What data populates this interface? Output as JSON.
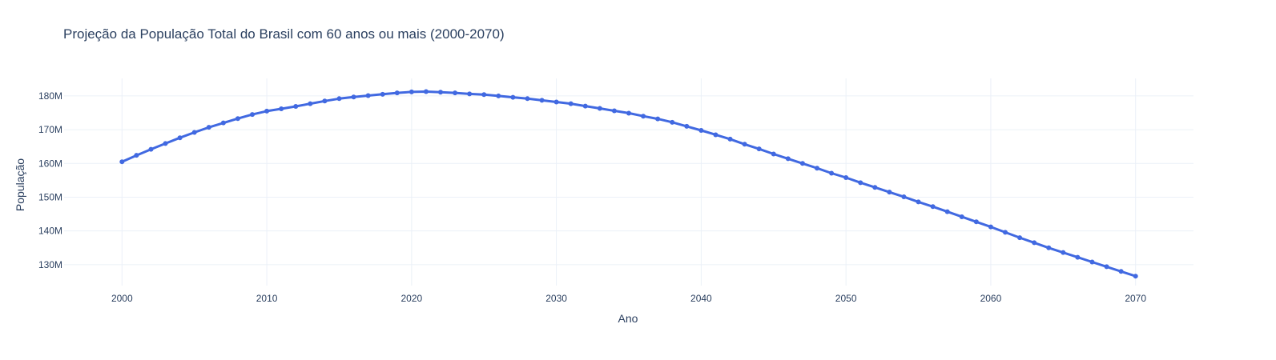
{
  "chart_data": {
    "type": "line",
    "title": "Projeção da População Total do Brasil com 60 anos ou mais (2000-2070)",
    "xlabel": "Ano",
    "ylabel": "População",
    "xlim": [
      1996,
      2074
    ],
    "ylim": [
      123800000,
      185200000
    ],
    "x_ticks": [
      2000,
      2010,
      2020,
      2030,
      2040,
      2050,
      2060,
      2070
    ],
    "y_ticks": [
      130000000,
      140000000,
      150000000,
      160000000,
      170000000,
      180000000
    ],
    "y_tick_labels": [
      "130M",
      "140M",
      "150M",
      "160M",
      "170M",
      "180M"
    ],
    "grid": true,
    "line_color": "#4169e1",
    "series": [
      {
        "x": [
          2000,
          2001,
          2002,
          2003,
          2004,
          2005,
          2006,
          2007,
          2008,
          2009,
          2010,
          2011,
          2012,
          2013,
          2014,
          2015,
          2016,
          2017,
          2018,
          2019,
          2020,
          2021,
          2022,
          2023,
          2024,
          2025,
          2026,
          2027,
          2028,
          2029,
          2030,
          2031,
          2032,
          2033,
          2034,
          2035,
          2036,
          2037,
          2038,
          2039,
          2040,
          2041,
          2042,
          2043,
          2044,
          2045,
          2046,
          2047,
          2048,
          2049,
          2050,
          2051,
          2052,
          2053,
          2054,
          2055,
          2056,
          2057,
          2058,
          2059,
          2060,
          2061,
          2062,
          2063,
          2064,
          2065,
          2066,
          2067,
          2068,
          2069,
          2070
        ],
        "values": [
          160500000,
          162400000,
          164200000,
          165900000,
          167600000,
          169200000,
          170700000,
          172000000,
          173300000,
          174500000,
          175500000,
          176200000,
          176900000,
          177700000,
          178500000,
          179200000,
          179700000,
          180100000,
          180500000,
          180900000,
          181200000,
          181300000,
          181100000,
          180900000,
          180600000,
          180400000,
          180000000,
          179600000,
          179200000,
          178700000,
          178200000,
          177700000,
          177000000,
          176300000,
          175600000,
          174900000,
          174000000,
          173200000,
          172200000,
          171000000,
          169800000,
          168500000,
          167200000,
          165700000,
          164300000,
          162800000,
          161400000,
          160000000,
          158600000,
          157100000,
          155800000,
          154300000,
          152900000,
          151500000,
          150100000,
          148600000,
          147200000,
          145700000,
          144200000,
          142700000,
          141200000,
          139600000,
          138000000,
          136500000,
          135000000,
          133600000,
          132200000,
          130800000,
          129400000,
          128000000,
          126600000
        ]
      }
    ]
  }
}
